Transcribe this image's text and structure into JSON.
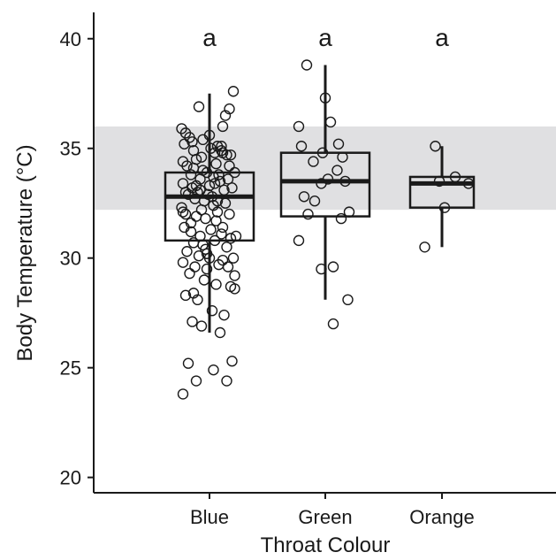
{
  "chart_data": {
    "type": "box",
    "xlabel": "Throat Colour",
    "ylabel": "Body Temperature (°C)",
    "categories": [
      "Blue",
      "Green",
      "Orange"
    ],
    "ylim": [
      19.3,
      41.2
    ],
    "yticks": [
      20,
      25,
      30,
      35,
      40
    ],
    "shaded_band": {
      "y_from": 32.2,
      "y_to": 36.0,
      "color": "#e0e0e2"
    },
    "grid": false,
    "colors": {
      "axis": "#1a1a1a",
      "box_fill": "#ffffff",
      "point_stroke": "#1a1a1a"
    },
    "boxes": [
      {
        "category": "Blue",
        "letter": "a",
        "whisker_low": 26.6,
        "q1": 30.8,
        "median": 32.8,
        "q3": 33.9,
        "whisker_high": 37.5
      },
      {
        "category": "Green",
        "letter": "a",
        "whisker_low": 28.1,
        "q1": 31.9,
        "median": 33.5,
        "q3": 34.8,
        "whisker_high": 38.8
      },
      {
        "category": "Orange",
        "letter": "a",
        "whisker_low": 30.5,
        "q1": 32.3,
        "median": 33.4,
        "q3": 33.7,
        "whisker_high": 35.1
      }
    ],
    "points": [
      {
        "category": "Blue",
        "jitter": [
          -0.21,
          -0.18,
          -0.15,
          -0.19,
          -0.08,
          -0.05,
          0.06,
          0.12,
          0.15,
          0.18,
          -0.12,
          -0.06,
          0.01,
          0.04,
          0.09,
          0.1,
          -0.2,
          -0.17,
          -0.1,
          0.05,
          0.13,
          0.16,
          -0.14,
          -0.07,
          -0.02,
          0.03,
          0.07,
          -0.2,
          -0.13,
          -0.09,
          0.0,
          0.08,
          0.14,
          0.19,
          -0.16,
          -0.11,
          -0.04,
          0.02,
          0.11,
          0.17,
          -0.21,
          -0.06,
          0.03,
          0.12,
          -0.18,
          -0.1,
          -0.03,
          0.06,
          0.15,
          -0.19,
          -0.14,
          -0.07,
          0.01,
          0.09,
          0.16,
          0.2,
          -0.12,
          -0.05,
          0.04,
          0.13,
          -0.17,
          -0.08,
          0.0,
          0.1,
          0.18,
          -0.2,
          -0.11,
          -0.02,
          0.07,
          0.14,
          -0.15,
          -0.04,
          0.05,
          0.16,
          0.19,
          -0.18,
          -0.09,
          0.02,
          0.11,
          -0.13,
          -0.06,
          0.08,
          0.17,
          -0.16,
          0.03,
          -0.1,
          0.13,
          -0.2,
          0.0,
          0.15,
          -0.07,
          0.06,
          -0.14,
          0.1,
          -0.03,
          0.19,
          -0.12,
          -0.05,
          0.04,
          -0.01,
          -0.13,
          0.09,
          -0.1,
          -0.02,
          0.05,
          -0.2,
          0.1,
          -0.12,
          -0.18
        ],
        "values": [
          35.9,
          35.7,
          35.5,
          35.2,
          36.9,
          35.4,
          35.1,
          36.5,
          36.8,
          37.6,
          34.9,
          34.6,
          35.0,
          34.8,
          35.1,
          34.8,
          34.4,
          34.2,
          34.5,
          34.3,
          34.7,
          34.7,
          33.8,
          33.6,
          33.9,
          33.7,
          33.8,
          33.4,
          33.2,
          33.0,
          33.3,
          33.5,
          33.6,
          33.9,
          32.9,
          32.7,
          32.6,
          32.8,
          33.1,
          33.2,
          32.3,
          32.2,
          32.4,
          32.5,
          32.0,
          31.9,
          31.8,
          32.1,
          32.0,
          31.4,
          31.2,
          31.0,
          31.3,
          31.1,
          30.9,
          31.0,
          30.7,
          30.6,
          30.8,
          30.5,
          30.3,
          30.1,
          30.0,
          29.9,
          30.0,
          29.8,
          29.6,
          29.5,
          29.7,
          29.6,
          29.3,
          29.0,
          28.8,
          28.7,
          28.6,
          28.3,
          28.1,
          27.6,
          27.4,
          27.1,
          26.9,
          26.6,
          25.3,
          25.2,
          24.9,
          24.4,
          24.4,
          23.8,
          35.6,
          34.2,
          33.1,
          32.6,
          31.6,
          31.4,
          30.4,
          29.2,
          28.4,
          34.0,
          33.4,
          32.9,
          35.3,
          34.9,
          33.3,
          30.2,
          31.7,
          32.1,
          36.0,
          34.1,
          33.0
        ],
        "note": ""
      },
      {
        "category": "Green",
        "jitter": [
          -0.14,
          0.0,
          0.04,
          -0.2,
          0.1,
          -0.18,
          -0.02,
          0.13,
          -0.09,
          0.09,
          0.02,
          -0.03,
          0.15,
          -0.16,
          -0.08,
          0.18,
          -0.13,
          0.12,
          -0.2,
          0.06,
          -0.03,
          0.17,
          0.06
        ],
        "values": [
          38.8,
          37.3,
          36.2,
          36.0,
          35.2,
          35.1,
          34.8,
          34.6,
          34.4,
          34.0,
          33.6,
          33.4,
          33.5,
          32.8,
          32.6,
          32.1,
          32.0,
          31.8,
          30.8,
          29.6,
          29.5,
          28.1,
          27.0
        ]
      },
      {
        "category": "Orange",
        "jitter": [
          -0.05,
          0.1,
          -0.02,
          0.2,
          0.02,
          -0.13
        ],
        "values": [
          35.1,
          33.7,
          33.5,
          33.4,
          32.3,
          30.5
        ]
      }
    ]
  }
}
